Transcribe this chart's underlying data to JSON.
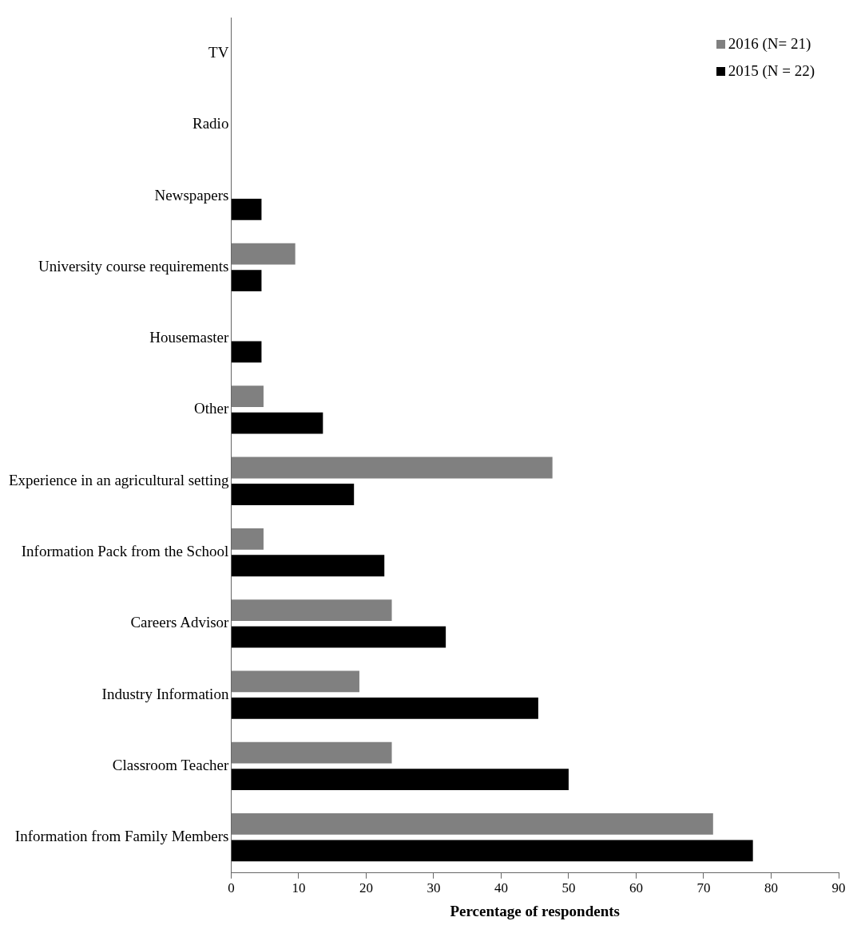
{
  "chart_data": {
    "type": "bar",
    "orientation": "horizontal",
    "xlabel": "Percentage of respondents",
    "categories": [
      "TV",
      "Radio",
      "Newspapers",
      "University course requirements",
      "Housemaster",
      "Other",
      "Experience in an agricultural setting",
      "Information Pack from the School",
      "Careers Advisor",
      "Industry Information",
      "Classroom Teacher",
      "Information from Family Members"
    ],
    "series": [
      {
        "name": "2016 (N= 21)",
        "color": "#808080",
        "values": [
          0,
          0,
          0,
          9.5,
          0,
          4.8,
          47.6,
          4.8,
          23.8,
          19,
          23.8,
          71.4
        ]
      },
      {
        "name": "2015 (N = 22)",
        "color": "#000000",
        "values": [
          0,
          0,
          4.5,
          4.5,
          4.5,
          13.6,
          18.2,
          22.7,
          31.8,
          45.5,
          50,
          77.3
        ]
      }
    ],
    "xlim": [
      0,
      90
    ],
    "xticks": [
      0,
      10,
      20,
      30,
      40,
      50,
      60,
      70,
      80,
      90
    ],
    "grid": false,
    "legend": "top right"
  }
}
